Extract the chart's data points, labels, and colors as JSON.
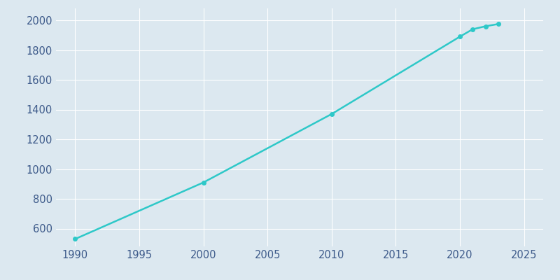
{
  "years": [
    1990,
    2000,
    2010,
    2020,
    2021,
    2022,
    2023
  ],
  "population": [
    530,
    910,
    1370,
    1890,
    1940,
    1960,
    1975
  ],
  "line_color": "#2ec8c8",
  "marker_color": "#2ec8c8",
  "background_color": "#dce8f0",
  "plot_bg_color": "#dce8f0",
  "grid_color": "#ffffff",
  "tick_color": "#3d5a8a",
  "xlim": [
    1988.5,
    2026.5
  ],
  "ylim": [
    480,
    2080
  ],
  "xticks": [
    1990,
    1995,
    2000,
    2005,
    2010,
    2015,
    2020,
    2025
  ],
  "yticks": [
    600,
    800,
    1000,
    1200,
    1400,
    1600,
    1800,
    2000
  ],
  "line_width": 1.8,
  "marker_size": 4,
  "title_color": "#2c3e7a",
  "title_fontsize": 13
}
